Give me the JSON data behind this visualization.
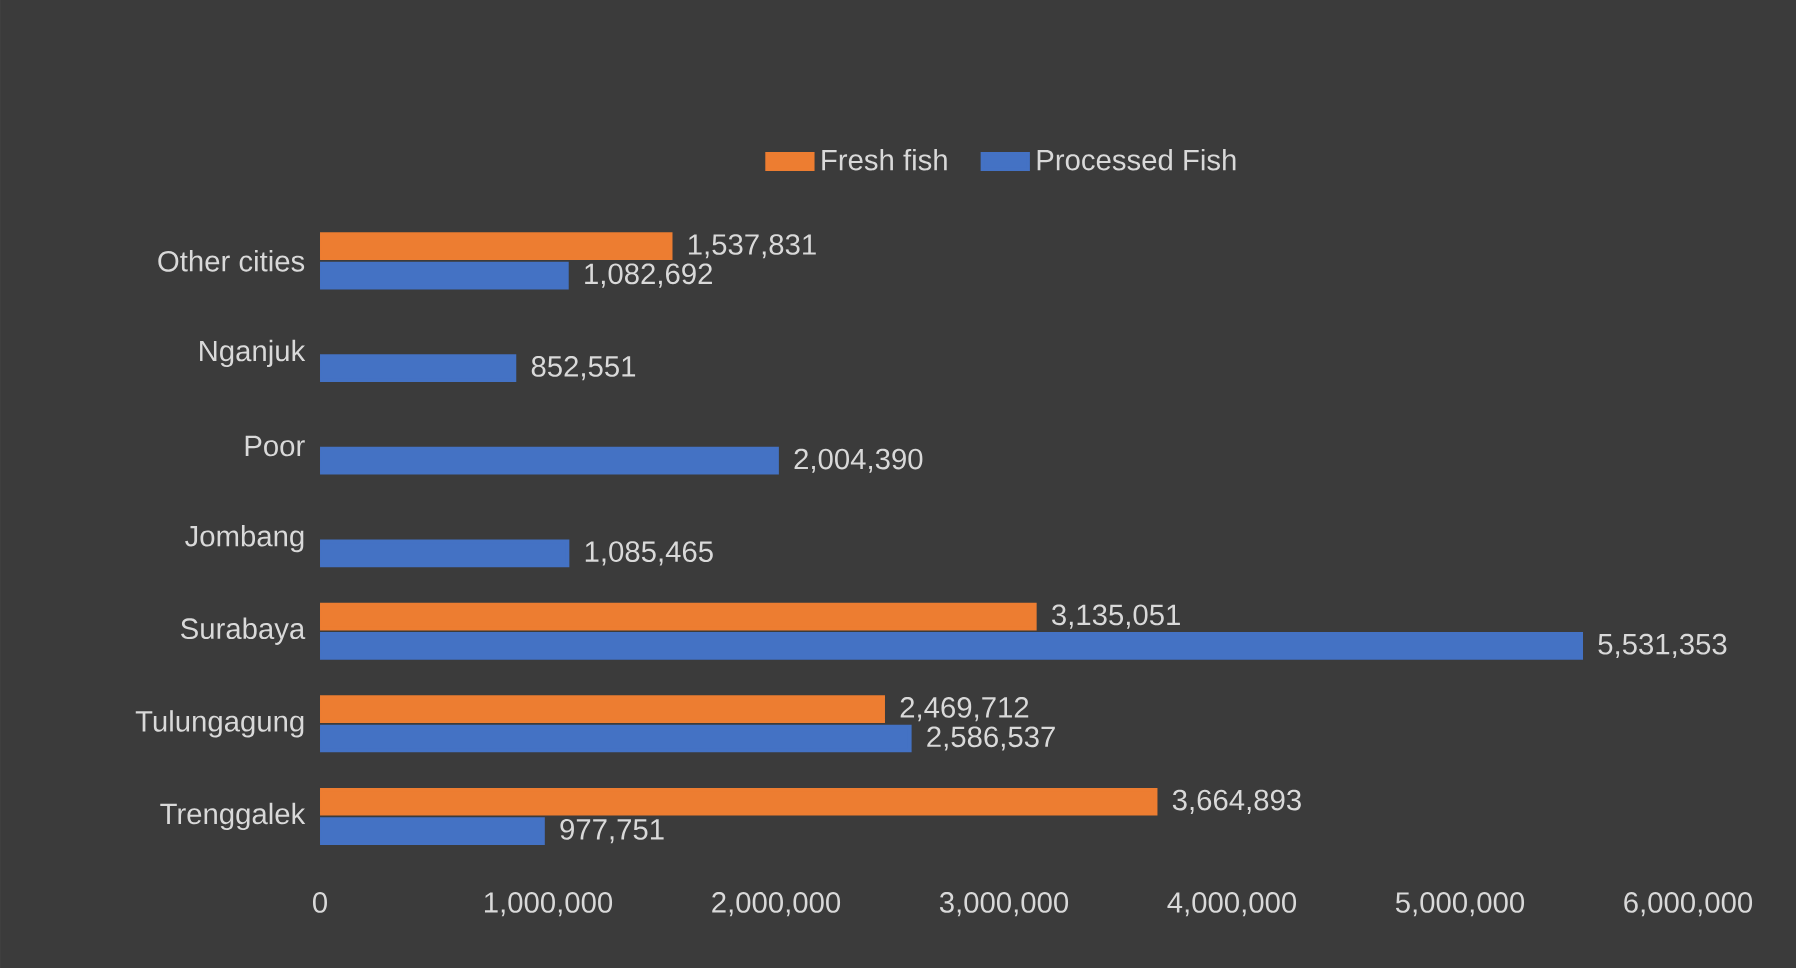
{
  "chart_data": {
    "type": "bar",
    "orientation": "horizontal",
    "categories": [
      "Other cities",
      "Nganjuk",
      "Poor",
      "Jombang",
      "Surabaya",
      "Tulungagung",
      "Trenggalek"
    ],
    "series": [
      {
        "name": "Fresh fish",
        "color": "#ed7d31",
        "values": [
          1537831,
          null,
          null,
          null,
          3135051,
          2469712,
          3664893
        ],
        "value_labels": [
          "1,537,831",
          null,
          null,
          null,
          "3,135,051",
          "2,469,712",
          "3,664,893"
        ]
      },
      {
        "name": "Processed Fish",
        "color": "#4472c4",
        "values": [
          1082692,
          852551,
          2004390,
          1085465,
          5531353,
          2586537,
          977751
        ],
        "value_labels": [
          "1,082,692",
          "852,551",
          "2,004,390",
          "1,085,465",
          "5,531,353",
          "2,586,537",
          "977,751"
        ]
      }
    ],
    "xlim": [
      0,
      6000000
    ],
    "xticks": [
      {
        "value": 0,
        "label": "0"
      },
      {
        "value": 1000000,
        "label": "1,000,000"
      },
      {
        "value": 2000000,
        "label": "2,000,000"
      },
      {
        "value": 3000000,
        "label": "3,000,000"
      },
      {
        "value": 4000000,
        "label": "4,000,000"
      },
      {
        "value": 5000000,
        "label": "5,000,000"
      },
      {
        "value": 6000000,
        "label": "6,000,000"
      }
    ],
    "grid": false,
    "legend": "top"
  }
}
